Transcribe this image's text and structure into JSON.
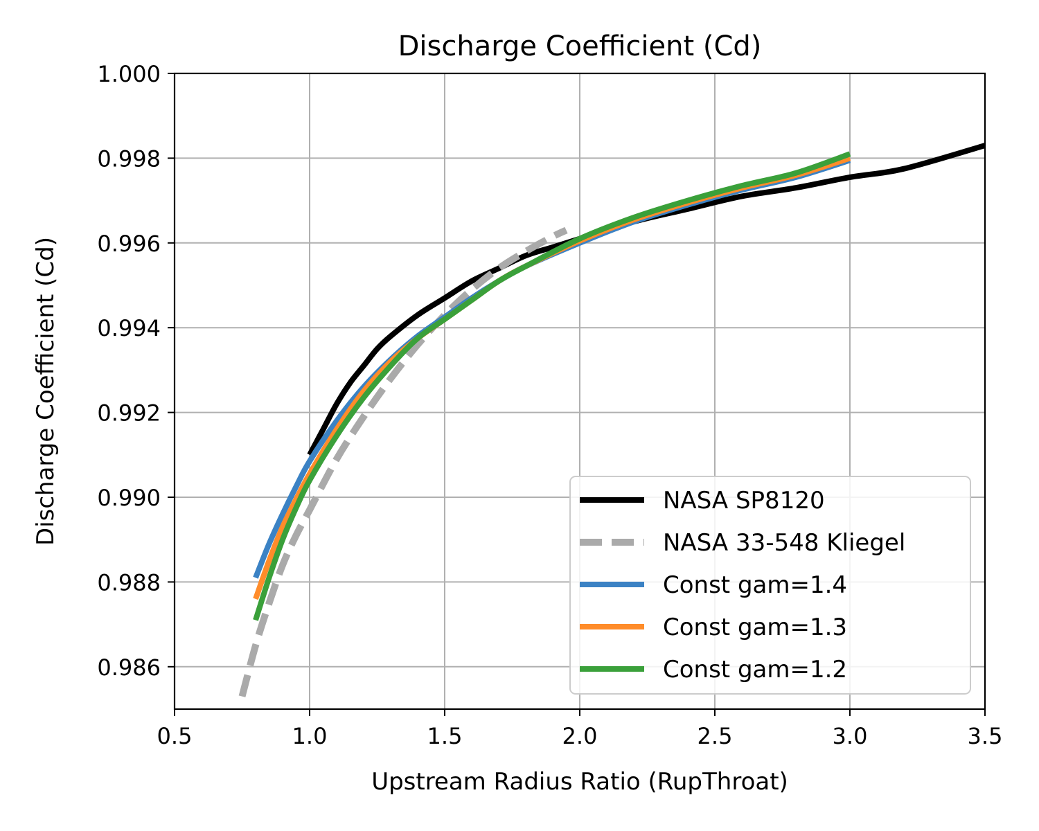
{
  "chart_data": {
    "type": "line",
    "title": "Discharge Coefficient (Cd)",
    "xlabel": "Upstream Radius Ratio (RupThroat)",
    "ylabel": "Discharge Coefficient (Cd)",
    "xlim": [
      0.5,
      3.5
    ],
    "ylim": [
      0.985,
      1.0
    ],
    "xticks": [
      0.5,
      1.0,
      1.5,
      2.0,
      2.5,
      3.0,
      3.5
    ],
    "xtick_labels": [
      "0.5",
      "1.0",
      "1.5",
      "2.0",
      "2.5",
      "3.0",
      "3.5"
    ],
    "yticks": [
      0.986,
      0.988,
      0.99,
      0.992,
      0.994,
      0.996,
      0.998,
      1.0
    ],
    "ytick_labels": [
      "0.986",
      "0.988",
      "0.990",
      "0.992",
      "0.994",
      "0.996",
      "0.998",
      "1.000"
    ],
    "grid": true,
    "legend_position": "lower right",
    "series": [
      {
        "name": "NASA SP8120",
        "color": "#000000",
        "style": "solid",
        "x": [
          1.0,
          1.05,
          1.1,
          1.15,
          1.2,
          1.25,
          1.3,
          1.4,
          1.5,
          1.6,
          1.7,
          1.8,
          1.9,
          2.0,
          2.2,
          2.4,
          2.6,
          2.8,
          3.0,
          3.2,
          3.5
        ],
        "y": [
          0.991,
          0.9916,
          0.9922,
          0.9927,
          0.9931,
          0.9935,
          0.9938,
          0.9943,
          0.9947,
          0.9951,
          0.9954,
          0.9957,
          0.9959,
          0.9961,
          0.9965,
          0.9968,
          0.9971,
          0.9973,
          0.99755,
          0.99775,
          0.9983
        ]
      },
      {
        "name": "NASA 33-548 Kliegel",
        "color": "#aaaaaa",
        "style": "dashed",
        "x": [
          0.75,
          0.8,
          0.85,
          0.9,
          0.95,
          1.0,
          1.1,
          1.2,
          1.3,
          1.4,
          1.5,
          1.6,
          1.7,
          1.8,
          1.9,
          1.95
        ],
        "y": [
          0.9853,
          0.9865,
          0.9875,
          0.9884,
          0.9891,
          0.9897,
          0.9909,
          0.9919,
          0.9928,
          0.9936,
          0.9943,
          0.9949,
          0.9954,
          0.9958,
          0.99615,
          0.9963
        ]
      },
      {
        "name": "Const gam=1.4",
        "color": "#3b82c4",
        "style": "solid",
        "x": [
          0.8,
          0.85,
          0.9,
          0.95,
          1.0,
          1.1,
          1.2,
          1.3,
          1.4,
          1.5,
          1.6,
          1.7,
          1.8,
          2.0,
          2.2,
          2.4,
          2.6,
          2.8,
          3.0
        ],
        "y": [
          0.9881,
          0.9889,
          0.9896,
          0.99025,
          0.99085,
          0.9918,
          0.9926,
          0.99325,
          0.9938,
          0.99425,
          0.9947,
          0.9951,
          0.99545,
          0.996,
          0.9965,
          0.9969,
          0.99725,
          0.99755,
          0.99795
        ]
      },
      {
        "name": "Const gam=1.3",
        "color": "#ff8c2a",
        "style": "solid",
        "x": [
          0.8,
          0.85,
          0.9,
          0.95,
          1.0,
          1.1,
          1.2,
          1.3,
          1.4,
          1.5,
          1.6,
          1.7,
          1.8,
          2.0,
          2.2,
          2.4,
          2.6,
          2.8,
          3.0
        ],
        "y": [
          0.9876,
          0.9885,
          0.9893,
          0.98995,
          0.99055,
          0.9916,
          0.9925,
          0.9932,
          0.99375,
          0.9942,
          0.99465,
          0.9951,
          0.99545,
          0.99605,
          0.99655,
          0.99695,
          0.9973,
          0.9976,
          0.998
        ]
      },
      {
        "name": "Const gam=1.2",
        "color": "#3aa03a",
        "style": "solid",
        "x": [
          0.8,
          0.85,
          0.9,
          0.95,
          1.0,
          1.1,
          1.2,
          1.3,
          1.4,
          1.5,
          1.6,
          1.7,
          1.8,
          2.0,
          2.2,
          2.4,
          2.6,
          2.8,
          3.0
        ],
        "y": [
          0.9871,
          0.9881,
          0.989,
          0.98975,
          0.9904,
          0.99145,
          0.99235,
          0.9931,
          0.99375,
          0.9942,
          0.99465,
          0.9951,
          0.99545,
          0.9961,
          0.9966,
          0.997,
          0.99735,
          0.99765,
          0.9981
        ]
      }
    ]
  }
}
